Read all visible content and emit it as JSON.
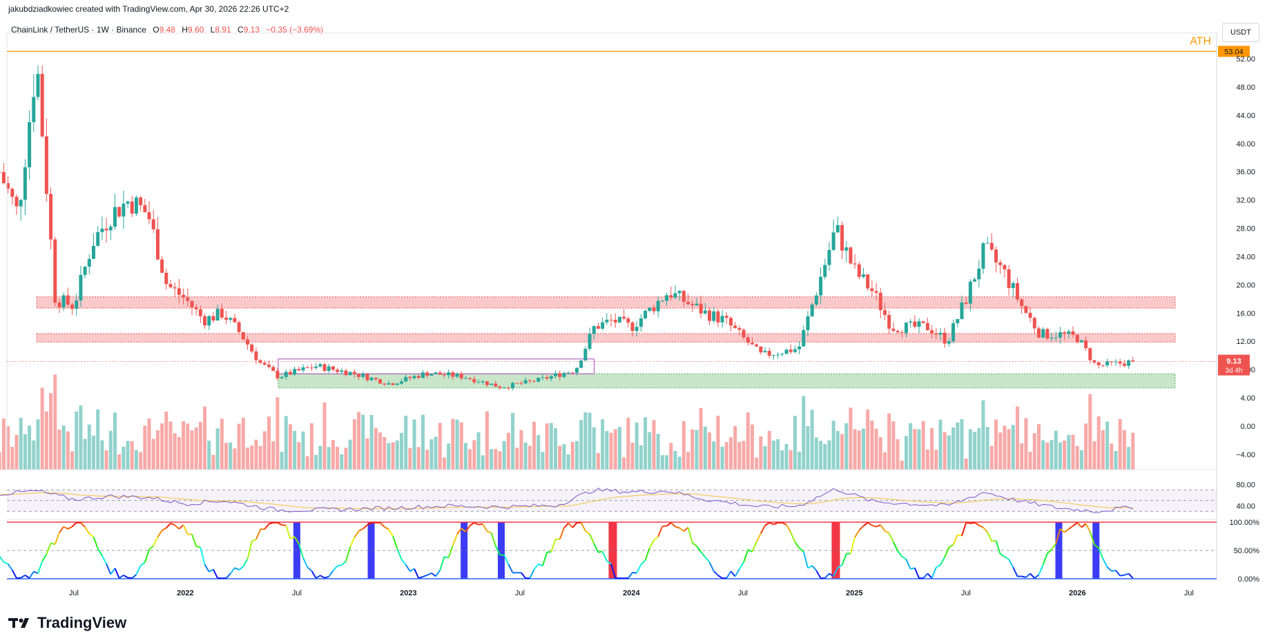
{
  "header": {
    "caption": "jakubdziadkowiec created with TradingView.com, Apr 30, 2026 22:26 UTC+2"
  },
  "legend": {
    "symbol": "ChainLink / TetherUS · 1W · Binance",
    "o_label": "O",
    "o_value": "9.48",
    "h_label": "H",
    "h_value": "9.60",
    "l_label": "L",
    "l_value": "8.91",
    "c_label": "C",
    "c_value": "9.13",
    "change": "−0.35 (−3.69%)"
  },
  "currency_button": "USDT",
  "brand": {
    "logo": "tradingview-logo",
    "name": "TradingView"
  },
  "colors": {
    "up": "#26a69a",
    "down": "#ef5350",
    "ath_line": "#ff9800",
    "resistance_zone": "#f7a6a8",
    "support_zone": "#a5d6a7",
    "range_box": "#ab47bc",
    "rsi": "#7e57c2",
    "rsi_ma": "#f5c542",
    "overbought_bar": "#f23645",
    "oversold_bar": "#3c3cf5"
  },
  "chart_data": [
    {
      "type": "candlestick",
      "title": "ChainLink / TetherUS · 1W · Binance",
      "ylim": [
        -5,
        55
      ],
      "y_ticks": [
        "52.00",
        "48.00",
        "44.00",
        "40.00",
        "36.00",
        "32.00",
        "28.00",
        "24.00",
        "20.00",
        "16.00",
        "12.00",
        "8.00",
        "4.00",
        "0.00",
        "−4.00"
      ],
      "x_ticks": [
        "Jul",
        "2022",
        "Jul",
        "2023",
        "Jul",
        "2024",
        "Jul",
        "2025",
        "Jul",
        "2026",
        "Jul"
      ],
      "last_price": {
        "value": "9.13",
        "countdown": "3d 4h"
      },
      "ath": {
        "label": "ATH",
        "value": "53.04"
      },
      "zones": [
        {
          "kind": "resistance",
          "from": 16.7,
          "to": 18.3,
          "x_start": "2021-05",
          "x_end": "2026-07"
        },
        {
          "kind": "resistance",
          "from": 11.9,
          "to": 13.1,
          "x_start": "2021-05",
          "x_end": "2026-07"
        },
        {
          "kind": "support",
          "from": 5.4,
          "to": 7.4,
          "x_start": "2022-06",
          "x_end": "2026-07"
        },
        {
          "kind": "range",
          "from": 7.4,
          "to": 9.5,
          "x_start": "2022-06",
          "x_end": "2023-11"
        }
      ],
      "keypoints": [
        [
          "2021-03",
          36
        ],
        [
          "2021-04",
          30
        ],
        [
          "2021-05",
          52
        ],
        [
          "2021-06",
          18
        ],
        [
          "2021-07",
          17
        ],
        [
          "2021-08",
          26
        ],
        [
          "2021-09",
          30
        ],
        [
          "2021-10",
          32
        ],
        [
          "2021-11",
          30
        ],
        [
          "2021-12",
          20
        ],
        [
          "2022-01",
          18
        ],
        [
          "2022-02",
          15
        ],
        [
          "2022-03",
          16
        ],
        [
          "2022-04",
          13
        ],
        [
          "2022-05",
          9
        ],
        [
          "2022-06",
          7
        ],
        [
          "2022-08",
          8.5
        ],
        [
          "2022-10",
          7.5
        ],
        [
          "2022-12",
          6
        ],
        [
          "2023-02",
          7.5
        ],
        [
          "2023-04",
          7
        ],
        [
          "2023-06",
          5.5
        ],
        [
          "2023-08",
          6.5
        ],
        [
          "2023-10",
          8
        ],
        [
          "2023-11",
          14
        ],
        [
          "2023-12",
          15
        ],
        [
          "2024-01",
          14
        ],
        [
          "2024-03",
          19
        ],
        [
          "2024-05",
          16
        ],
        [
          "2024-06",
          15
        ],
        [
          "2024-08",
          10
        ],
        [
          "2024-10",
          11
        ],
        [
          "2024-12",
          28
        ],
        [
          "2025-01",
          22
        ],
        [
          "2025-02",
          19
        ],
        [
          "2025-03",
          14
        ],
        [
          "2025-05",
          14
        ],
        [
          "2025-06",
          12
        ],
        [
          "2025-07",
          18
        ],
        [
          "2025-08",
          25
        ],
        [
          "2025-09",
          22
        ],
        [
          "2025-10",
          17
        ],
        [
          "2025-11",
          13
        ],
        [
          "2025-12",
          13
        ],
        [
          "2026-01",
          12.5
        ],
        [
          "2026-02",
          8.5
        ],
        [
          "2026-03",
          8.8
        ],
        [
          "2026-04",
          9.13
        ]
      ],
      "volume": "histogram shown in lower part of price pane, colored by candle direction"
    },
    {
      "type": "line",
      "title": "RSI",
      "ylim": [
        20,
        100
      ],
      "y_ticks": [
        "80.00",
        "40.00"
      ],
      "levels": [
        70,
        50,
        30
      ],
      "keypoints": [
        [
          "2021-03",
          62
        ],
        [
          "2021-05",
          68
        ],
        [
          "2021-07",
          52
        ],
        [
          "2021-09",
          58
        ],
        [
          "2021-11",
          56
        ],
        [
          "2022-01",
          44
        ],
        [
          "2022-03",
          50
        ],
        [
          "2022-06",
          32
        ],
        [
          "2022-09",
          33
        ],
        [
          "2022-12",
          36
        ],
        [
          "2023-03",
          40
        ],
        [
          "2023-06",
          38
        ],
        [
          "2023-09",
          41
        ],
        [
          "2023-11",
          70
        ],
        [
          "2024-01",
          66
        ],
        [
          "2024-03",
          68
        ],
        [
          "2024-05",
          52
        ],
        [
          "2024-08",
          38
        ],
        [
          "2024-10",
          40
        ],
        [
          "2024-12",
          72
        ],
        [
          "2025-02",
          48
        ],
        [
          "2025-04",
          44
        ],
        [
          "2025-06",
          40
        ],
        [
          "2025-08",
          66
        ],
        [
          "2025-10",
          48
        ],
        [
          "2025-12",
          36
        ],
        [
          "2026-02",
          30
        ],
        [
          "2026-04",
          38
        ]
      ]
    },
    {
      "type": "line",
      "title": "Stochastic oscillator",
      "ylim": [
        0,
        100
      ],
      "y_ticks": [
        "100.00%",
        "50.00%",
        "0.00%"
      ],
      "overbought_bars": [
        "2023-12",
        "2024-12"
      ],
      "oversold_bars": [
        "2022-07",
        "2022-11",
        "2023-04",
        "2023-06",
        "2025-12",
        "2026-02"
      ]
    }
  ]
}
